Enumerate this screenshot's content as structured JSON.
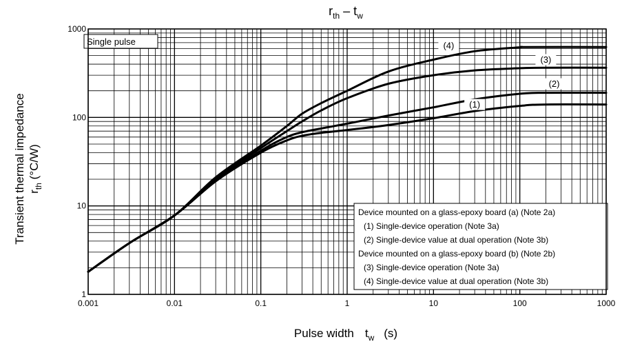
{
  "chart_data": {
    "type": "line",
    "title": {
      "main": "r",
      "main_sub": "th",
      "sep": " – ",
      "var": "t",
      "var_sub": "w"
    },
    "xlabel": {
      "main": "Pulse width",
      "var": "t",
      "var_sub": "w",
      "unit": "(s)"
    },
    "ylabel": {
      "line1": "Transient thermal impedance",
      "var": "r",
      "var_sub": "th",
      "unit": " (°C/W)"
    },
    "x_scale": "log",
    "y_scale": "log",
    "xlim": [
      0.001,
      1000
    ],
    "ylim": [
      1,
      1000
    ],
    "x_ticks": [
      {
        "value": 0.001,
        "label": "0.001"
      },
      {
        "value": 0.01,
        "label": "0.01"
      },
      {
        "value": 0.1,
        "label": "0.1"
      },
      {
        "value": 1,
        "label": "1"
      },
      {
        "value": 10,
        "label": "10"
      },
      {
        "value": 100,
        "label": "100"
      },
      {
        "value": 1000,
        "label": "1000"
      }
    ],
    "y_ticks": [
      {
        "value": 1,
        "label": "1"
      },
      {
        "value": 10,
        "label": "10"
      },
      {
        "value": 100,
        "label": "100"
      },
      {
        "value": 1000,
        "label": "1000"
      }
    ],
    "grid": true,
    "corner_box": "Single pulse",
    "legend_placement": "bottom-right",
    "legend_lines": [
      "Device mounted on a glass-epoxy board (a) (Note 2a)",
      "(1) Single-device operation (Note 3a)",
      "(2) Single-device value at dual operation (Note 3b)",
      "Device mounted on a glass-epoxy board (b) (Note 2b)",
      "(3) Single-device operation (Note 3a)",
      "(4) Single-device value at dual operation (Note 3b)"
    ],
    "series": [
      {
        "name": "(1)",
        "label_at": [
          30,
          140
        ],
        "x": [
          0.001,
          0.003,
          0.01,
          0.03,
          0.1,
          0.2,
          0.3,
          0.5,
          1,
          3,
          10,
          30,
          100,
          200,
          1000
        ],
        "y": [
          1.8,
          3.8,
          7.8,
          19,
          40,
          55,
          62,
          67,
          72,
          82,
          98,
          118,
          135,
          140,
          140
        ]
      },
      {
        "name": "(2)",
        "label_at": [
          250,
          240
        ],
        "x": [
          0.001,
          0.003,
          0.01,
          0.03,
          0.1,
          0.2,
          0.3,
          0.5,
          1,
          3,
          10,
          30,
          100,
          200,
          1000
        ],
        "y": [
          1.8,
          3.8,
          7.8,
          19,
          42,
          60,
          68,
          75,
          85,
          105,
          130,
          160,
          185,
          190,
          190
        ]
      },
      {
        "name": "(3)",
        "label_at": [
          200,
          450
        ],
        "x": [
          0.001,
          0.003,
          0.01,
          0.03,
          0.1,
          0.2,
          0.3,
          0.5,
          1,
          3,
          10,
          30,
          100,
          200,
          1000
        ],
        "y": [
          1.8,
          3.8,
          7.8,
          20,
          45,
          70,
          90,
          120,
          165,
          240,
          300,
          340,
          360,
          365,
          365
        ]
      },
      {
        "name": "(4)",
        "label_at": [
          15,
          650
        ],
        "x": [
          0.001,
          0.003,
          0.01,
          0.03,
          0.1,
          0.2,
          0.3,
          0.5,
          1,
          3,
          10,
          30,
          100,
          120,
          1000
        ],
        "y": [
          1.8,
          3.8,
          7.8,
          21,
          48,
          80,
          110,
          145,
          200,
          330,
          450,
          560,
          620,
          625,
          625
        ]
      }
    ]
  }
}
